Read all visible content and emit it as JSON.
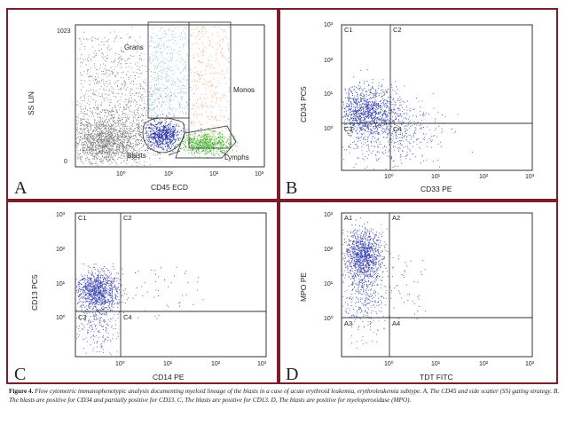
{
  "colors": {
    "frame": "#7a1f2a",
    "ungated": "#7a7a7a",
    "blasts": "#2a35a8",
    "grans": "#8ec9e8",
    "monos": "#f0a46a",
    "lymphs": "#3fb52a",
    "quadrant_dots": "#3d46b0"
  },
  "figure": {
    "caption_label": "Figure 4.",
    "caption_text": "Flow cytometric immunophenotypic analysis documenting myeloid lineage of the blasts in a case of acute erythroid leukemia, erythroleukemia subtype. A, The CD45 and side scatter (SS) gating strategy. B, The blasts are positive for CD34 and partially positive for CD33. C, The blasts are positive for CD13. D, The blasts are positive for myeloperoxidase (MPO)."
  },
  "panels": {
    "A": {
      "letter": "A",
      "xlabel": "CD45 ECD",
      "ylabel": "SS LIN",
      "xticks": [
        "10⁰",
        "10¹",
        "10²",
        "10³"
      ],
      "yticks": [
        "1023",
        "0"
      ],
      "gates": [
        "Grans",
        "Monos",
        "Blasts",
        "Lymphs"
      ]
    },
    "B": {
      "letter": "B",
      "xlabel": "CD33 PE",
      "ylabel": "CD34 PC5",
      "ticks": [
        "10⁰",
        "10¹",
        "10²",
        "10³"
      ],
      "quadrants": [
        "C1",
        "C2",
        "C3",
        "C4"
      ]
    },
    "C": {
      "letter": "C",
      "xlabel": "CD14 PE",
      "ylabel": "CD13 PC5",
      "ticks": [
        "10⁰",
        "10¹",
        "10²",
        "10³"
      ],
      "quadrants": [
        "C1",
        "C2",
        "C3",
        "C4"
      ]
    },
    "D": {
      "letter": "D",
      "xlabel": "TDT FITC",
      "ylabel": "MPO PE",
      "ticks": [
        "10⁰",
        "10¹",
        "10²",
        "10³"
      ],
      "quadrants": [
        "A1",
        "A2",
        "A3",
        "A4"
      ]
    }
  }
}
